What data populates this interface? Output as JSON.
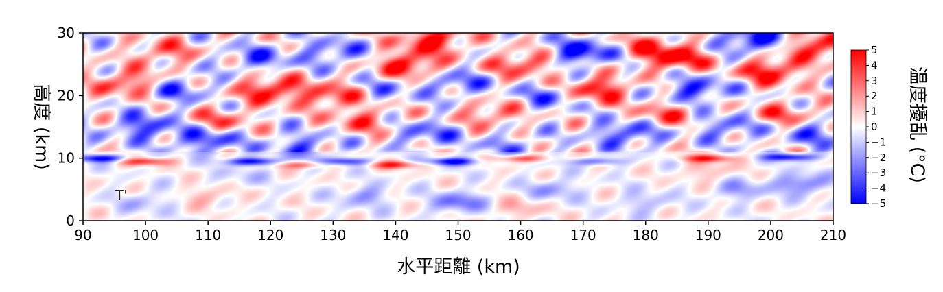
{
  "chart_data": {
    "type": "heatmap",
    "panel_label": "T'",
    "xlabel": "水平距離 (km)",
    "ylabel": "高度 (km)",
    "xlim": [
      90,
      210
    ],
    "ylim": [
      0,
      30
    ],
    "xticks": [
      "90",
      "100",
      "110",
      "120",
      "130",
      "140",
      "150",
      "160",
      "170",
      "180",
      "190",
      "200",
      "210"
    ],
    "yticks": [
      "0",
      "10",
      "20",
      "30"
    ],
    "colorbar": {
      "label": "温度擾乱 (°C)",
      "range": [
        -5,
        5
      ],
      "ticks": [
        "5",
        "4",
        "3",
        "2",
        "1",
        "0",
        "−1",
        "−2",
        "−3",
        "−4",
        "−5"
      ],
      "low_color": "#0000ff",
      "mid_color": "#ffffff",
      "high_color": "#ff0000"
    },
    "features": [
      {
        "x": 100,
        "y": 3,
        "value": -1.5
      },
      {
        "x": 115,
        "y": 7,
        "value": -1
      },
      {
        "x": 135,
        "y": 4,
        "value": -2
      },
      {
        "x": 150,
        "y": 3,
        "value": -3
      },
      {
        "x": 165,
        "y": 5,
        "value": -2
      },
      {
        "x": 180,
        "y": 3,
        "value": -1.5
      },
      {
        "x": 195,
        "y": 5,
        "value": -2
      },
      {
        "x": 205,
        "y": 6,
        "value": -3
      },
      {
        "x": 110,
        "y": 4,
        "value": 1.5
      },
      {
        "x": 160,
        "y": 2,
        "value": 1.5
      },
      {
        "x": 190,
        "y": 8,
        "value": 1.5
      },
      {
        "x": 93,
        "y": 10,
        "value": -5
      },
      {
        "x": 117,
        "y": 9.5,
        "value": -5
      },
      {
        "x": 132,
        "y": 9.5,
        "value": -4
      },
      {
        "x": 149,
        "y": 9.5,
        "value": -5
      },
      {
        "x": 172,
        "y": 9.5,
        "value": -3
      },
      {
        "x": 203,
        "y": 10.2,
        "value": -5
      },
      {
        "x": 100,
        "y": 9.5,
        "value": 4
      },
      {
        "x": 125,
        "y": 9,
        "value": 3
      },
      {
        "x": 140,
        "y": 9,
        "value": 4
      },
      {
        "x": 160,
        "y": 10,
        "value": 4
      },
      {
        "x": 190,
        "y": 10,
        "value": 4
      },
      {
        "x": 97,
        "y": 22,
        "value": 4
      },
      {
        "x": 100,
        "y": 15,
        "value": -4
      },
      {
        "x": 105,
        "y": 21,
        "value": -3
      },
      {
        "x": 110,
        "y": 13,
        "value": -4
      },
      {
        "x": 112,
        "y": 16,
        "value": 3
      },
      {
        "x": 120,
        "y": 21,
        "value": 5
      },
      {
        "x": 125,
        "y": 12,
        "value": -3
      },
      {
        "x": 130,
        "y": 27,
        "value": -3
      },
      {
        "x": 135,
        "y": 16,
        "value": 3
      },
      {
        "x": 142,
        "y": 25,
        "value": 5
      },
      {
        "x": 145,
        "y": 14,
        "value": -3
      },
      {
        "x": 146,
        "y": 29,
        "value": 5
      },
      {
        "x": 150,
        "y": 22,
        "value": -3
      },
      {
        "x": 155,
        "y": 17,
        "value": 3
      },
      {
        "x": 160,
        "y": 25,
        "value": 4
      },
      {
        "x": 165,
        "y": 20,
        "value": -3
      },
      {
        "x": 170,
        "y": 27,
        "value": -5
      },
      {
        "x": 172,
        "y": 21,
        "value": 5
      },
      {
        "x": 177,
        "y": 14,
        "value": -4
      },
      {
        "x": 180,
        "y": 28,
        "value": 3
      },
      {
        "x": 185,
        "y": 26,
        "value": 5
      },
      {
        "x": 188,
        "y": 21,
        "value": -4
      },
      {
        "x": 193,
        "y": 15,
        "value": -3
      },
      {
        "x": 200,
        "y": 24,
        "value": 5
      },
      {
        "x": 202,
        "y": 17,
        "value": 3
      },
      {
        "x": 197,
        "y": 29,
        "value": -5
      },
      {
        "x": 208,
        "y": 28,
        "value": 5
      },
      {
        "x": 207,
        "y": 14,
        "value": -3
      },
      {
        "x": 118,
        "y": 26,
        "value": -3
      },
      {
        "x": 130,
        "y": 20,
        "value": 4
      },
      {
        "x": 103,
        "y": 27,
        "value": 3
      },
      {
        "x": 158,
        "y": 12,
        "value": -2
      },
      {
        "x": 138,
        "y": 21,
        "value": -2
      },
      {
        "x": 183,
        "y": 17,
        "value": 3
      }
    ]
  }
}
